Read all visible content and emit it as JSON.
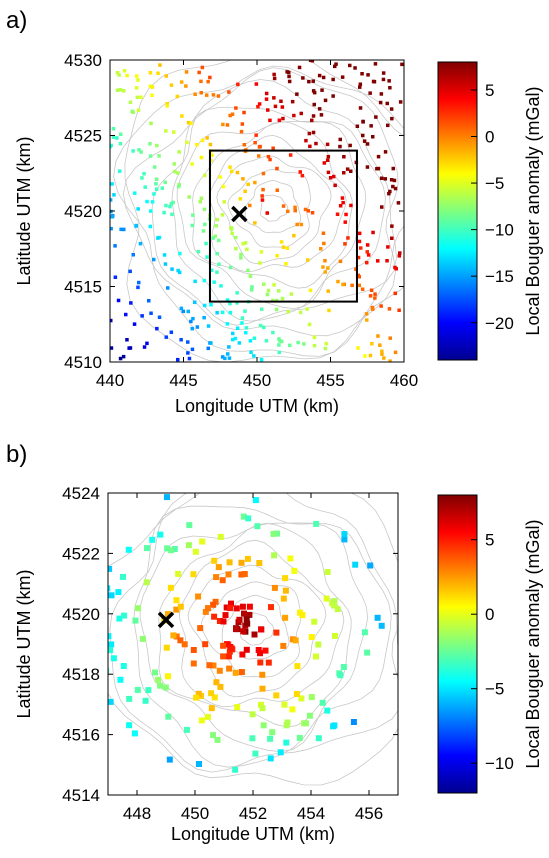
{
  "chart_data": [
    {
      "panel": "a)",
      "type": "scatter",
      "xlabel": "Longitude UTM (km)",
      "ylabel": "Latitude UTM (km)",
      "xlim": [
        440,
        460
      ],
      "ylim": [
        4510,
        4530
      ],
      "xticks": [
        "440",
        "445",
        "450",
        "455",
        "460"
      ],
      "yticks": [
        "4510",
        "4515",
        "4520",
        "4525",
        "4530"
      ],
      "colorbar": {
        "label": "Local Bouguer anomaly (mGal)",
        "range": [
          -24,
          8
        ],
        "ticks": [
          "5",
          "0",
          "−5",
          "−10",
          "−15",
          "−20"
        ]
      },
      "marker": {
        "x": 448.8,
        "y": 4519.8,
        "symbol": "cross"
      },
      "box": {
        "x0": 446.8,
        "x1": 456.8,
        "y0": 4514,
        "y1": 4524
      },
      "anomaly_field": {
        "center": [
          450.5,
          4520.2
        ],
        "peak": 7,
        "gradient_x": 0.55,
        "gradient_y": 0.45
      }
    },
    {
      "panel": "b)",
      "type": "scatter",
      "xlabel": "Longitude UTM (km)",
      "ylabel": "Latitude UTM (km)",
      "xlim": [
        447,
        457
      ],
      "ylim": [
        4514,
        4524
      ],
      "xticks": [
        "448",
        "450",
        "452",
        "454",
        "456"
      ],
      "yticks": [
        "4514",
        "4516",
        "4518",
        "4520",
        "4522",
        "4524"
      ],
      "colorbar": {
        "label": "Local Bouguer anomaly (mGal)",
        "range": [
          -12,
          8
        ],
        "ticks": [
          "5",
          "0",
          "−5",
          "−10"
        ]
      },
      "marker": {
        "x": 449,
        "y": 4519.8,
        "symbol": "cross"
      },
      "anomaly_field": {
        "center": [
          451.5,
          4519.5
        ],
        "peak": 7.5
      }
    }
  ],
  "colors": {
    "contour": "#c8c8c8",
    "frame": "#000000"
  }
}
